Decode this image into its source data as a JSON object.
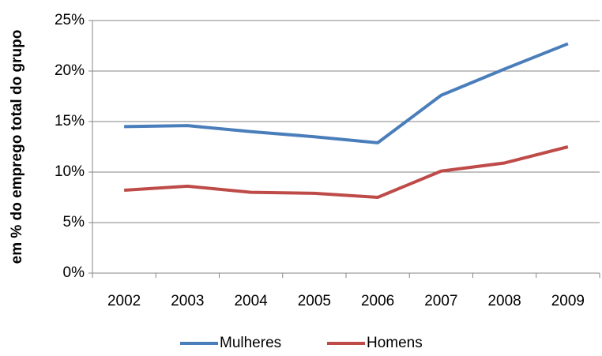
{
  "chart_data": {
    "type": "line",
    "y_label": "em % do emprego total do grupo",
    "categories": [
      "2002",
      "2003",
      "2004",
      "2005",
      "2006",
      "2007",
      "2008",
      "2009"
    ],
    "series": [
      {
        "name": "Mulheres",
        "color": "#4a7ebb",
        "values": [
          14.5,
          14.6,
          14.0,
          13.5,
          12.9,
          17.6,
          20.2,
          22.7
        ]
      },
      {
        "name": "Homens",
        "color": "#be4b48",
        "values": [
          8.2,
          8.6,
          8.0,
          7.9,
          7.5,
          10.1,
          10.9,
          12.5
        ]
      }
    ],
    "ylim": [
      0,
      25
    ],
    "yticks": [
      {
        "value": 0,
        "label": "0%"
      },
      {
        "value": 5,
        "label": "5%"
      },
      {
        "value": 10,
        "label": "10%"
      },
      {
        "value": 15,
        "label": "15%"
      },
      {
        "value": 20,
        "label": "20%"
      },
      {
        "value": 25,
        "label": "25%"
      }
    ],
    "grid": true,
    "legend": "bottom"
  }
}
